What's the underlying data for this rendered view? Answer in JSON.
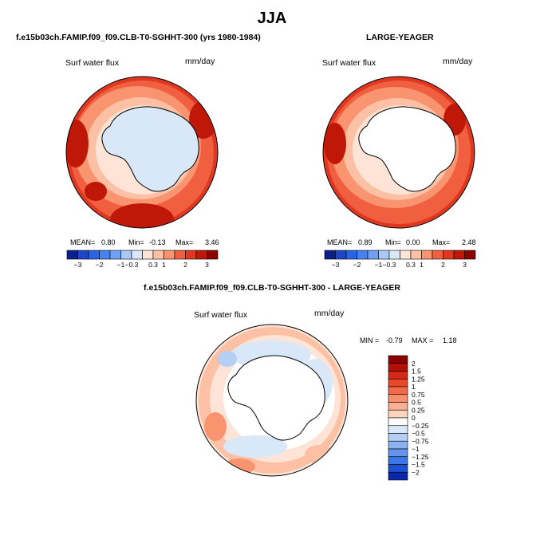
{
  "title": "JJA",
  "panels": [
    {
      "case": "f.e15b03ch.FAMIP.f09_f09.CLB-T0-SGHHT-300 (yrs 1980-1984)",
      "variable": "Surf water flux",
      "units": "mm/day",
      "stats": {
        "mean_label": "MEAN=",
        "mean": "0.80",
        "min_label": "Min=",
        "min": "-0.13",
        "max_label": "Max=",
        "max": "3.46"
      },
      "land_color": "#d8e8f8"
    },
    {
      "case": "LARGE-YEAGER",
      "variable": "Surf water flux",
      "units": "mm/day",
      "stats": {
        "mean_label": "MEAN=",
        "mean": "0.89",
        "min_label": "Min=",
        "min": "0.00",
        "max_label": "Max=",
        "max": "2.48"
      },
      "land_color": "#ffffff"
    },
    {
      "case": "f.e15b03ch.FAMIP.f09_f09.CLB-T0-SGHHT-300 - LARGE-YEAGER",
      "variable": "Surf water flux",
      "units": "mm/day",
      "stats": {
        "min_label": "MIN =",
        "min": "-0.79",
        "max_label": "MAX =",
        "max": "1.18"
      },
      "land_color": "#ffffff"
    }
  ],
  "colorbar_top": {
    "colors": [
      "#0a1e8c",
      "#1e46c8",
      "#2a64e6",
      "#4682f0",
      "#6ea0f5",
      "#a8c8f8",
      "#d8e8f8",
      "#fde4d6",
      "#fcc0a4",
      "#f89470",
      "#f06040",
      "#e03820",
      "#c01808",
      "#8c0000"
    ],
    "labels": [
      "-3",
      "-2",
      "-1",
      "-0.3",
      "0.3",
      "1",
      "2",
      "3"
    ]
  },
  "colorbar_diff": {
    "colors": [
      "#8c0000",
      "#b41008",
      "#d42818",
      "#e84828",
      "#f26a48",
      "#f89070",
      "#fcb090",
      "#fdd4bc",
      "#ffffff",
      "#d8e8f8",
      "#b4cef4",
      "#8cb2f0",
      "#6494ec",
      "#3c76e8",
      "#1e50d2",
      "#0a28a8"
    ],
    "labels": [
      "2",
      "1.5",
      "1.25",
      "1",
      "0.75",
      "0.5",
      "0.25",
      "0",
      "-0.25",
      "-0.5",
      "-0.75",
      "-1",
      "-1.25",
      "-1.5",
      "-2"
    ]
  }
}
